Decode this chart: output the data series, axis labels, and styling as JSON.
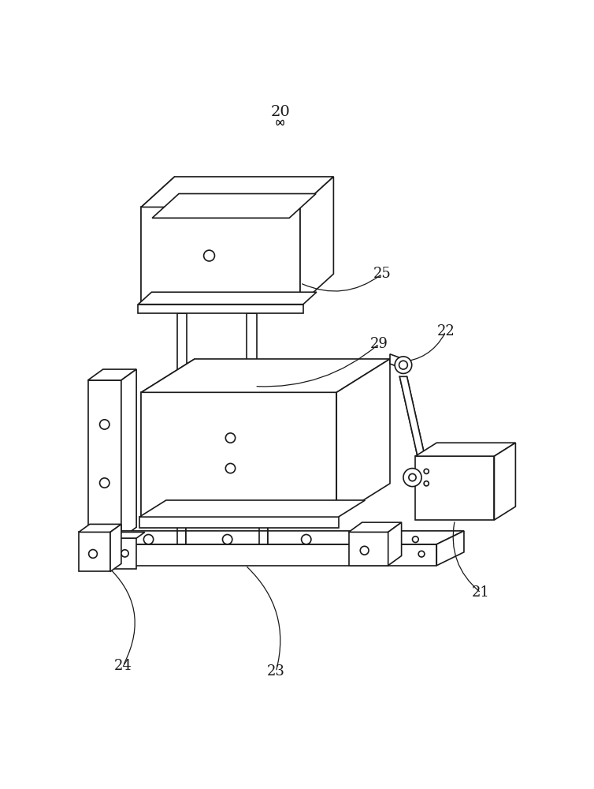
{
  "bg_color": "#ffffff",
  "line_color": "#1a1a1a",
  "label_color": "#1a1a1a",
  "lw": 1.2,
  "lw_thin": 0.7,
  "lw_thick": 1.5
}
